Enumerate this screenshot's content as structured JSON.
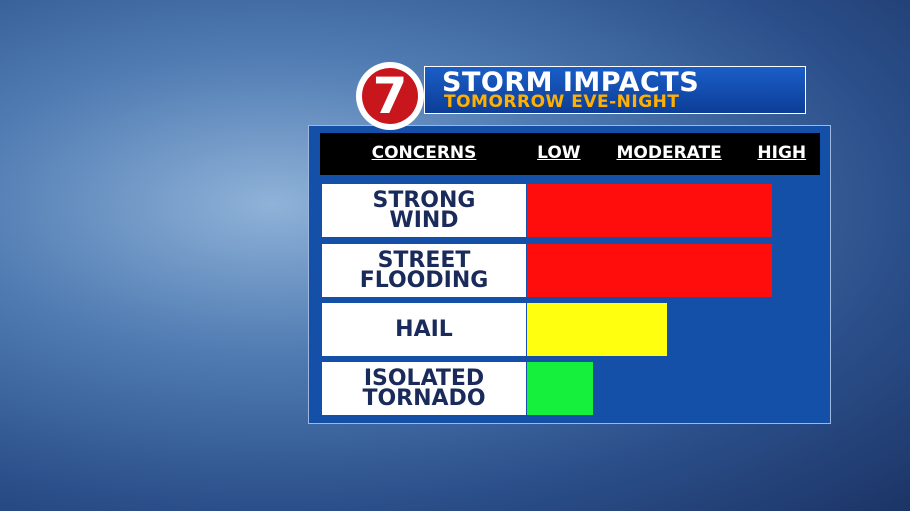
{
  "logo": "7",
  "chart_data": {
    "type": "bar",
    "orientation": "horizontal",
    "title": "STORM IMPACTS",
    "subtitle": "TOMORROW EVE-NIGHT",
    "category_label": "CONCERNS",
    "categories": [
      "STRONG WIND",
      "STREET FLOODING",
      "HAIL",
      "ISOLATED TORNADO"
    ],
    "values": [
      100,
      100,
      57,
      27
    ],
    "colors": [
      "#ff0d0d",
      "#ff0d0d",
      "#ffff0f",
      "#14f03c"
    ],
    "xlim": [
      0,
      110
    ],
    "xticks": [
      {
        "value": 13,
        "label": "LOW"
      },
      {
        "value": 58,
        "label": "MODERATE"
      },
      {
        "value": 104,
        "label": "HIGH"
      }
    ]
  }
}
